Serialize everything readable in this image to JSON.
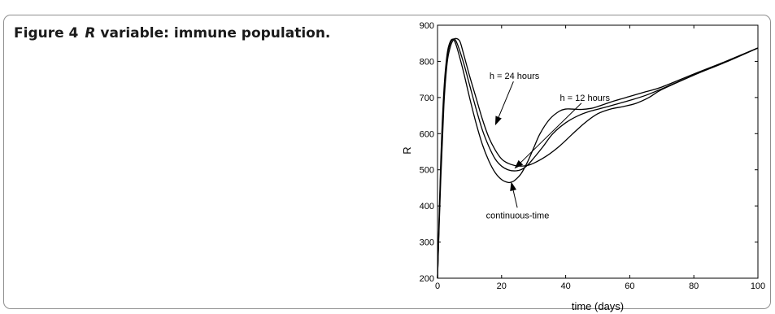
{
  "caption": {
    "label": "Figure 4",
    "symbol": "R",
    "text": "variable: immune population."
  },
  "chart_data": {
    "type": "line",
    "xlabel": "time (days)",
    "ylabel": "R",
    "xlim": [
      0,
      100
    ],
    "ylim": [
      200,
      900
    ],
    "xticks": [
      0,
      20,
      40,
      60,
      80,
      100
    ],
    "yticks": [
      200,
      300,
      400,
      500,
      600,
      700,
      800,
      900
    ],
    "grid": false,
    "series": [
      {
        "name": "continuous-time",
        "x": [
          0,
          1,
          2,
          3,
          4,
          5,
          6,
          8,
          10,
          12,
          14,
          16,
          18,
          20,
          22,
          23,
          24,
          26,
          28,
          30,
          32,
          35,
          38,
          40,
          42,
          45,
          48,
          50,
          55,
          60,
          65,
          70,
          80,
          90,
          100
        ],
        "values": [
          200,
          520,
          720,
          820,
          855,
          860,
          840,
          775,
          700,
          630,
          570,
          525,
          492,
          473,
          465,
          466,
          470,
          488,
          520,
          560,
          600,
          640,
          662,
          668,
          668,
          667,
          670,
          675,
          690,
          703,
          716,
          729,
          765,
          800,
          837
        ]
      },
      {
        "name": "h = 12 hours",
        "x": [
          0,
          1,
          2,
          3,
          4,
          5,
          6,
          8,
          10,
          12,
          14,
          16,
          18,
          20,
          22,
          24,
          26,
          28,
          30,
          33,
          36,
          40,
          44,
          48,
          52,
          56,
          60,
          65,
          70,
          80,
          90,
          100
        ],
        "values": [
          200,
          500,
          700,
          810,
          850,
          862,
          852,
          800,
          735,
          670,
          610,
          565,
          530,
          510,
          500,
          497,
          500,
          512,
          532,
          565,
          600,
          630,
          650,
          663,
          672,
          682,
          692,
          706,
          724,
          762,
          798,
          837
        ]
      },
      {
        "name": "h = 24 hours",
        "x": [
          0,
          1,
          2,
          3,
          4,
          5,
          6,
          7,
          8,
          10,
          12,
          14,
          16,
          18,
          20,
          22,
          24,
          26,
          28,
          30,
          34,
          38,
          42,
          46,
          50,
          54,
          58,
          62,
          66,
          70,
          80,
          90,
          100
        ],
        "values": [
          200,
          470,
          680,
          795,
          840,
          860,
          863,
          855,
          825,
          760,
          700,
          640,
          590,
          555,
          530,
          518,
          512,
          510,
          512,
          518,
          538,
          565,
          598,
          630,
          655,
          668,
          675,
          684,
          700,
          722,
          762,
          800,
          837
        ]
      }
    ],
    "annotations": [
      {
        "text": "h = 24 hours",
        "x": 24,
        "y": 760,
        "arrow_to": [
          18,
          623
        ]
      },
      {
        "text": "h = 12 hours",
        "x": 46,
        "y": 700,
        "arrow_to": [
          24,
          503
        ]
      },
      {
        "text": "continuous-time",
        "x": 25,
        "y": 375,
        "arrow_to": [
          23,
          467
        ]
      }
    ]
  }
}
